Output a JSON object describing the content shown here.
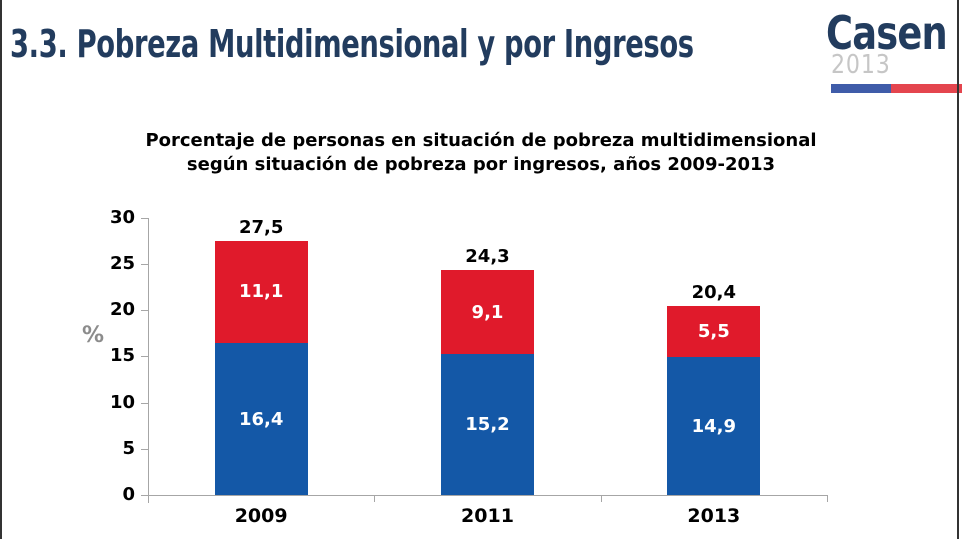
{
  "header": {
    "title": "3.3. Pobreza Multidimensional y por Ingresos",
    "logo": {
      "brand": "Casen",
      "year": "2013"
    }
  },
  "chart_data": {
    "type": "bar",
    "stacked": true,
    "title_line1": "Porcentaje de personas en situación de pobreza multidimensional",
    "title_line2": "según situación de pobreza por ingresos, años 2009-2013",
    "categories": [
      "2009",
      "2011",
      "2013"
    ],
    "series": [
      {
        "color": "#1458A7",
        "values": [
          16.4,
          15.2,
          14.9
        ],
        "labels": [
          "16,4",
          "15,2",
          "14,9"
        ]
      },
      {
        "color": "#E01A2B",
        "values": [
          11.1,
          9.1,
          5.5
        ],
        "labels": [
          "11,1",
          "9,1",
          "5,5"
        ]
      }
    ],
    "totals": [
      27.5,
      24.3,
      20.4
    ],
    "total_labels": [
      "27,5",
      "24,3",
      "20,4"
    ],
    "ylabel": "%",
    "ylim": [
      0,
      30
    ],
    "y_ticks": [
      0,
      5,
      10,
      15,
      20,
      25,
      30
    ],
    "grid": false,
    "legend": false
  },
  "theme": {
    "navy": "#223C5E",
    "gray_year": "#C6C6C6",
    "axis_gray": "#A6A6A6",
    "bar_blue": "#1458A7",
    "bar_red": "#E01A2B",
    "flag_blue": "#3F5CA9",
    "flag_red": "#E4454E",
    "percent_gray": "#8C8C8C",
    "border_dark": "#333333"
  }
}
